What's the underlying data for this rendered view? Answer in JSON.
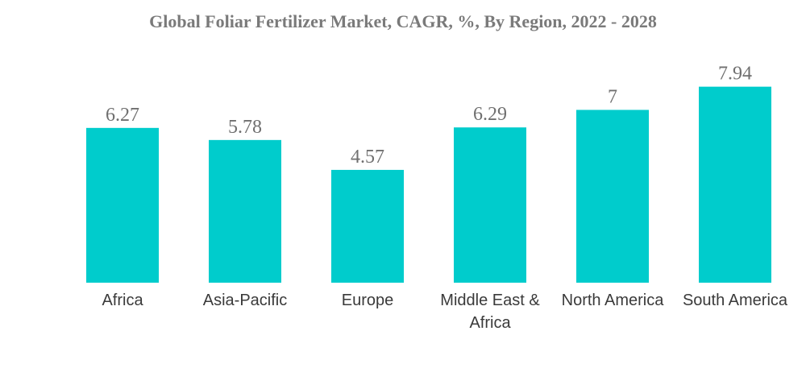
{
  "chart_data": {
    "type": "bar",
    "title": "Global Foliar Fertilizer Market, CAGR, %, By Region, 2022 - 2028",
    "categories": [
      "Africa",
      "Asia-Pacific",
      "Europe",
      "Middle East & Africa",
      "North America",
      "South America"
    ],
    "category_lines": [
      [
        "Africa"
      ],
      [
        "Asia-Pacific"
      ],
      [
        "Europe"
      ],
      [
        "Middle East &",
        "Africa"
      ],
      [
        "North America"
      ],
      [
        "South America"
      ]
    ],
    "values": [
      6.27,
      5.78,
      4.57,
      6.29,
      7,
      7.94
    ],
    "value_labels": [
      "6.27",
      "5.78",
      "4.57",
      "6.29",
      "7",
      "7.94"
    ],
    "xlabel": "",
    "ylabel": "",
    "ylim": [
      0,
      10
    ],
    "grid": false,
    "legend": "none",
    "bar_color": "#00CCCC"
  }
}
